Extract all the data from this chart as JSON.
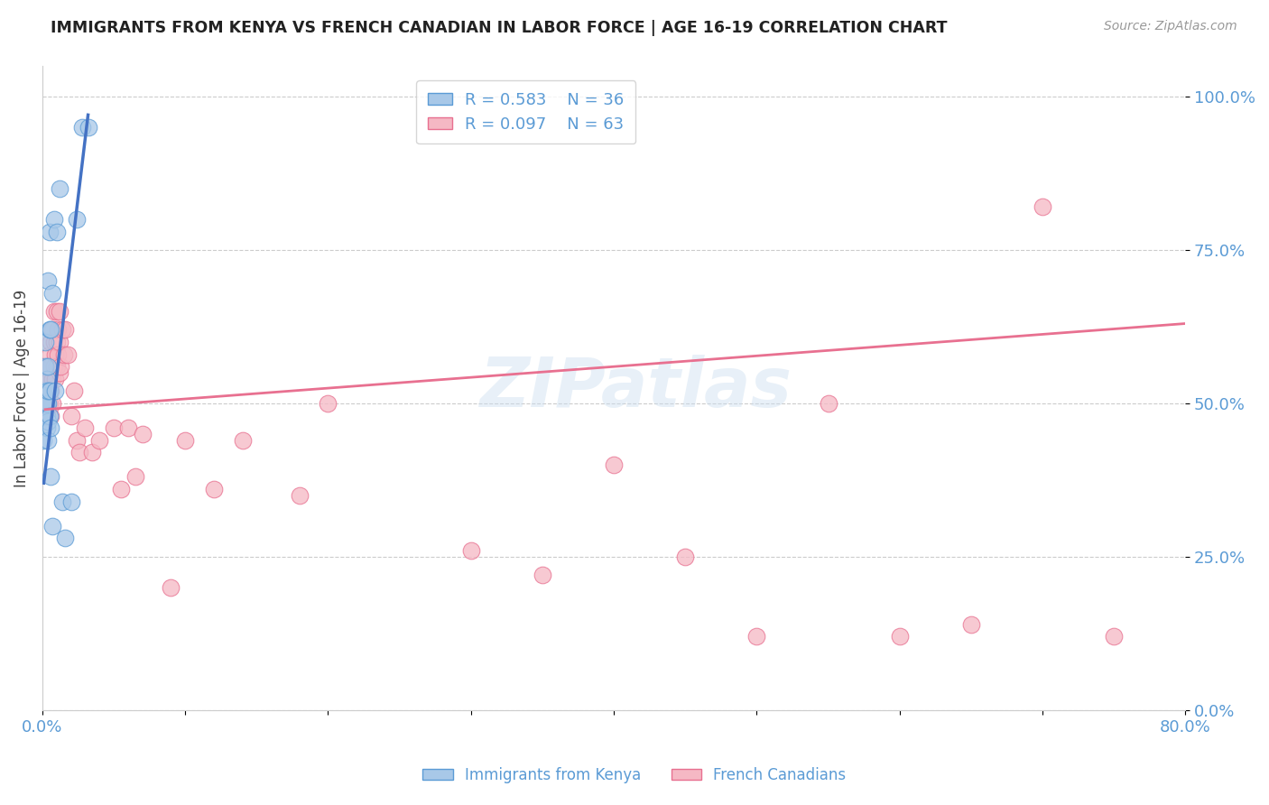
{
  "title": "IMMIGRANTS FROM KENYA VS FRENCH CANADIAN IN LABOR FORCE | AGE 16-19 CORRELATION CHART",
  "source": "Source: ZipAtlas.com",
  "ylabel": "In Labor Force | Age 16-19",
  "xlim": [
    0.0,
    0.8
  ],
  "ylim": [
    0.0,
    1.05
  ],
  "yticks": [
    0.0,
    0.25,
    0.5,
    0.75,
    1.0
  ],
  "ytick_labels": [
    "0.0%",
    "25.0%",
    "50.0%",
    "75.0%",
    "100.0%"
  ],
  "xticks": [
    0.0,
    0.1,
    0.2,
    0.3,
    0.4,
    0.5,
    0.6,
    0.7,
    0.8
  ],
  "xtick_labels": [
    "0.0%",
    "",
    "",
    "",
    "",
    "",
    "",
    "",
    "80.0%"
  ],
  "legend_blue_r": "R = 0.583",
  "legend_blue_n": "N = 36",
  "legend_pink_r": "R = 0.097",
  "legend_pink_n": "N = 63",
  "blue_fill": "#a8c8e8",
  "blue_edge": "#5b9bd5",
  "pink_fill": "#f5b8c4",
  "pink_edge": "#e87090",
  "blue_line_color": "#4472c4",
  "pink_line_color": "#e87090",
  "watermark": "ZIPatlas",
  "blue_scatter_x": [
    0.001,
    0.001,
    0.002,
    0.002,
    0.002,
    0.002,
    0.003,
    0.003,
    0.003,
    0.003,
    0.003,
    0.004,
    0.004,
    0.004,
    0.004,
    0.004,
    0.004,
    0.005,
    0.005,
    0.005,
    0.005,
    0.006,
    0.006,
    0.006,
    0.007,
    0.007,
    0.008,
    0.009,
    0.01,
    0.012,
    0.014,
    0.016,
    0.02,
    0.024,
    0.028,
    0.032
  ],
  "blue_scatter_y": [
    0.44,
    0.48,
    0.5,
    0.52,
    0.56,
    0.6,
    0.46,
    0.48,
    0.5,
    0.52,
    0.54,
    0.44,
    0.47,
    0.5,
    0.52,
    0.56,
    0.7,
    0.48,
    0.52,
    0.62,
    0.78,
    0.38,
    0.46,
    0.62,
    0.3,
    0.68,
    0.8,
    0.52,
    0.78,
    0.85,
    0.34,
    0.28,
    0.34,
    0.8,
    0.95,
    0.95
  ],
  "pink_scatter_x": [
    0.002,
    0.003,
    0.003,
    0.004,
    0.004,
    0.004,
    0.005,
    0.005,
    0.005,
    0.005,
    0.006,
    0.006,
    0.006,
    0.006,
    0.007,
    0.007,
    0.007,
    0.008,
    0.008,
    0.008,
    0.009,
    0.009,
    0.01,
    0.01,
    0.01,
    0.011,
    0.011,
    0.012,
    0.012,
    0.012,
    0.013,
    0.014,
    0.015,
    0.016,
    0.018,
    0.02,
    0.022,
    0.024,
    0.026,
    0.03,
    0.035,
    0.04,
    0.05,
    0.055,
    0.06,
    0.065,
    0.07,
    0.09,
    0.1,
    0.12,
    0.14,
    0.18,
    0.2,
    0.3,
    0.35,
    0.4,
    0.45,
    0.5,
    0.55,
    0.6,
    0.65,
    0.7,
    0.75
  ],
  "pink_scatter_y": [
    0.5,
    0.48,
    0.52,
    0.5,
    0.54,
    0.56,
    0.5,
    0.52,
    0.54,
    0.58,
    0.48,
    0.52,
    0.56,
    0.6,
    0.5,
    0.54,
    0.62,
    0.56,
    0.6,
    0.65,
    0.54,
    0.58,
    0.56,
    0.6,
    0.65,
    0.58,
    0.62,
    0.55,
    0.6,
    0.65,
    0.56,
    0.62,
    0.58,
    0.62,
    0.58,
    0.48,
    0.52,
    0.44,
    0.42,
    0.46,
    0.42,
    0.44,
    0.46,
    0.36,
    0.46,
    0.38,
    0.45,
    0.2,
    0.44,
    0.36,
    0.44,
    0.35,
    0.5,
    0.26,
    0.22,
    0.4,
    0.25,
    0.12,
    0.5,
    0.12,
    0.14,
    0.82,
    0.12
  ],
  "pink_trend_x": [
    0.002,
    0.8
  ],
  "pink_trend_y": [
    0.49,
    0.63
  ],
  "blue_trend_x": [
    0.001,
    0.032
  ],
  "blue_trend_y": [
    0.37,
    0.97
  ]
}
